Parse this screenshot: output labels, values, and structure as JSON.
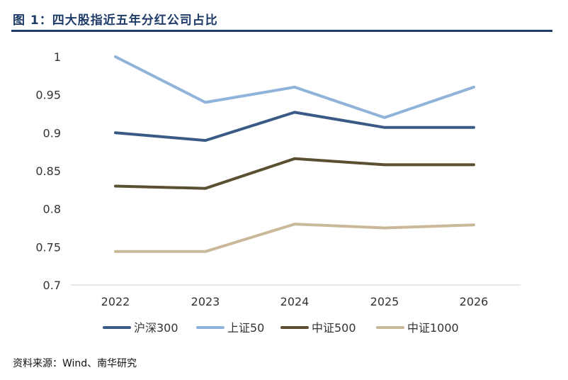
{
  "title": "图 1：四大股指近五年分红公司占比",
  "source": "资料来源：Wind、南华研究",
  "chart_data": {
    "type": "line",
    "categories": [
      "2022",
      "2023",
      "2024",
      "2025",
      "2026"
    ],
    "ylim": [
      0.7,
      1
    ],
    "yticks": [
      "0.7",
      "0.75",
      "0.8",
      "0.85",
      "0.9",
      "0.95",
      "1"
    ],
    "grid": false,
    "legend_position": "bottom",
    "series": [
      {
        "name": "沪深300",
        "color": "#3a5a86",
        "values": [
          0.9,
          0.89,
          0.927,
          0.907,
          0.907
        ]
      },
      {
        "name": "上证50",
        "color": "#8fb3d9",
        "values": [
          1.0,
          0.94,
          0.96,
          0.92,
          0.96
        ]
      },
      {
        "name": "中证500",
        "color": "#5b4f32",
        "values": [
          0.83,
          0.827,
          0.866,
          0.858,
          0.858
        ]
      },
      {
        "name": "中证1000",
        "color": "#c9b998",
        "values": [
          0.744,
          0.744,
          0.78,
          0.775,
          0.779
        ]
      }
    ]
  }
}
